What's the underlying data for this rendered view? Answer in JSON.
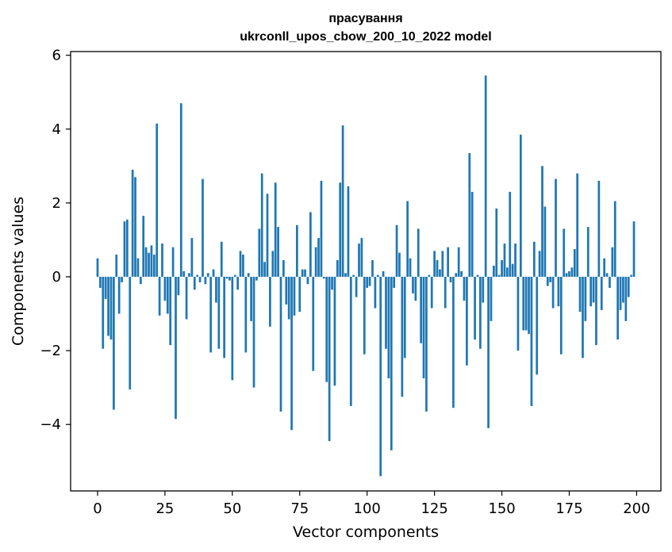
{
  "chart_data": {
    "type": "bar",
    "title": [
      "прасування",
      "ukrconll_upos_cbow_200_10_2022 model"
    ],
    "xlabel": "Vector components",
    "ylabel": "Components values",
    "xlim": [
      -10,
      209
    ],
    "ylim": [
      -5.8,
      6.1
    ],
    "x_ticks": [
      0,
      25,
      50,
      75,
      100,
      125,
      150,
      175,
      200
    ],
    "y_ticks": [
      6,
      4,
      2,
      0,
      -2,
      -4
    ],
    "y_tick_labels": [
      "6",
      "4",
      "2",
      "0",
      "−2",
      "−4"
    ],
    "bar_color": "#1f77b4",
    "grid": false,
    "legend": "none",
    "values": [
      0.5,
      -0.3,
      -1.95,
      -0.6,
      -1.6,
      -1.7,
      -3.6,
      0.6,
      -1.0,
      -0.15,
      1.5,
      1.55,
      -3.05,
      2.9,
      2.7,
      0.5,
      -0.2,
      1.65,
      0.8,
      0.65,
      0.85,
      0.6,
      4.15,
      -1.05,
      0.9,
      -0.65,
      -1.0,
      -1.85,
      0.8,
      -3.85,
      -0.5,
      4.7,
      0.15,
      -1.15,
      0.1,
      1.05,
      -0.35,
      0.05,
      -0.15,
      2.65,
      -0.2,
      0.1,
      -2.05,
      0.2,
      -0.7,
      -1.95,
      0.95,
      -2.2,
      -0.05,
      -0.1,
      -2.8,
      0.05,
      -0.35,
      0.7,
      0.6,
      -2.05,
      0.1,
      -1.2,
      -3.0,
      -0.1,
      1.3,
      2.8,
      0.4,
      2.25,
      -1.35,
      0.7,
      2.55,
      1.35,
      -3.65,
      0.45,
      -0.75,
      -1.15,
      -4.15,
      -1.05,
      1.4,
      -0.95,
      0.2,
      0.2,
      -0.2,
      1.75,
      -2.55,
      0.8,
      1.05,
      2.6,
      -0.05,
      -2.85,
      -4.45,
      -0.35,
      -2.95,
      0.45,
      2.55,
      4.1,
      0.1,
      2.45,
      -3.5,
      0.05,
      -0.55,
      0.9,
      1.05,
      -2.1,
      -0.3,
      -0.25,
      0.45,
      -0.85,
      0.05,
      -5.4,
      0.15,
      -1.95,
      -2.75,
      -4.7,
      -0.3,
      1.4,
      0.65,
      -3.25,
      -2.2,
      2.05,
      0.5,
      -0.45,
      -0.65,
      1.3,
      -1.8,
      -2.75,
      -3.65,
      0.05,
      -0.85,
      0.7,
      0.45,
      0.2,
      0.7,
      -0.85,
      0.8,
      -0.15,
      -3.55,
      0.1,
      0.8,
      0.15,
      -0.65,
      -2.4,
      3.35,
      2.3,
      -1.7,
      0.05,
      -1.95,
      -0.7,
      5.45,
      -4.1,
      -1.2,
      0.3,
      1.85,
      0.05,
      0.45,
      0.9,
      0.25,
      2.3,
      0.35,
      0.9,
      -2.0,
      3.85,
      -1.45,
      -1.45,
      -1.55,
      -3.5,
      0.95,
      -2.65,
      0.7,
      3.0,
      1.9,
      -0.25,
      -0.15,
      -0.85,
      2.65,
      -0.8,
      -2.1,
      1.3,
      0.1,
      0.15,
      0.25,
      0.75,
      2.8,
      -0.95,
      -2.2,
      -1.2,
      1.35,
      -0.8,
      -0.7,
      -1.85,
      2.6,
      -0.9,
      0.5,
      0.1,
      -0.3,
      0.8,
      2.05,
      -1.7,
      -0.9,
      -0.7,
      -1.2,
      -0.55,
      0.05,
      1.5
    ]
  }
}
